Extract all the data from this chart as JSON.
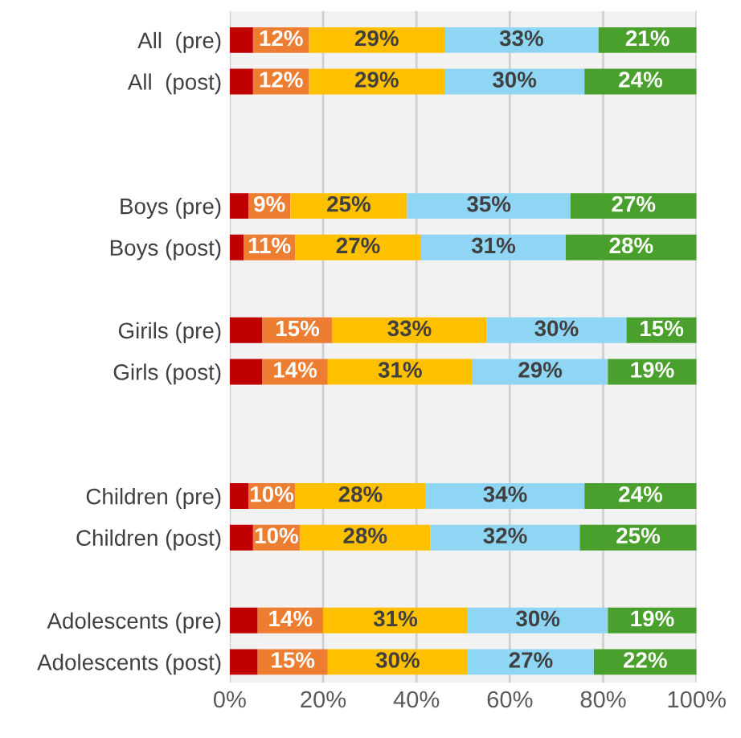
{
  "chart_data": {
    "type": "bar",
    "orientation": "horizontal",
    "stacked": true,
    "categories": [
      "All  (pre)",
      "All  (post)",
      null,
      null,
      "Boys (pre)",
      "Boys (post)",
      null,
      "Girils (pre)",
      "Girls (post)",
      null,
      null,
      "Children (pre)",
      "Children (post)",
      null,
      "Adolescents (pre)",
      "Adolescents (post)"
    ],
    "series": [
      {
        "color": "#c00000",
        "values": [
          5,
          5,
          null,
          null,
          4,
          3,
          null,
          7,
          7,
          null,
          null,
          4,
          5,
          null,
          6,
          6
        ],
        "value_labels": [
          null,
          null,
          null,
          null,
          null,
          null,
          null,
          null,
          null,
          null,
          null,
          null,
          null,
          null,
          null,
          null
        ]
      },
      {
        "color": "#ed7d31",
        "values": [
          12,
          12,
          null,
          null,
          9,
          11,
          null,
          15,
          14,
          null,
          null,
          10,
          10,
          null,
          14,
          15
        ],
        "value_labels": [
          "12%",
          "12%",
          null,
          null,
          "9%",
          "11%",
          null,
          "15%",
          "14%",
          null,
          null,
          "10%",
          "10%",
          null,
          "14%",
          "15%"
        ]
      },
      {
        "color": "#ffc000",
        "values": [
          29,
          29,
          null,
          null,
          25,
          27,
          null,
          33,
          31,
          null,
          null,
          28,
          28,
          null,
          31,
          30
        ],
        "value_labels": [
          "29%",
          "29%",
          null,
          null,
          "25%",
          "27%",
          null,
          "33%",
          "31%",
          null,
          null,
          "28%",
          "28%",
          null,
          "31%",
          "30%"
        ]
      },
      {
        "color": "#8fd6f5",
        "values": [
          33,
          30,
          null,
          null,
          35,
          31,
          null,
          30,
          29,
          null,
          null,
          34,
          32,
          null,
          30,
          27
        ],
        "value_labels": [
          "33%",
          "30%",
          null,
          null,
          "35%",
          "31%",
          null,
          "30%",
          "29%",
          null,
          null,
          "34%",
          "32%",
          null,
          "30%",
          "27%"
        ]
      },
      {
        "color": "#4aa02c",
        "values": [
          21,
          24,
          null,
          null,
          27,
          28,
          null,
          15,
          19,
          null,
          null,
          24,
          25,
          null,
          19,
          22
        ],
        "value_labels": [
          "21%",
          "24%",
          null,
          null,
          "27%",
          "28%",
          null,
          "15%",
          "19%",
          null,
          null,
          "24%",
          "25%",
          null,
          "19%",
          "22%"
        ]
      }
    ],
    "xlim": [
      0,
      100
    ],
    "xticks": [
      {
        "value": 0,
        "label": "0%"
      },
      {
        "value": 20,
        "label": "20%"
      },
      {
        "value": 40,
        "label": "40%"
      },
      {
        "value": 60,
        "label": "60%"
      },
      {
        "value": 80,
        "label": "80%"
      },
      {
        "value": 100,
        "label": "100%"
      }
    ],
    "grid": "x",
    "legend": false
  }
}
